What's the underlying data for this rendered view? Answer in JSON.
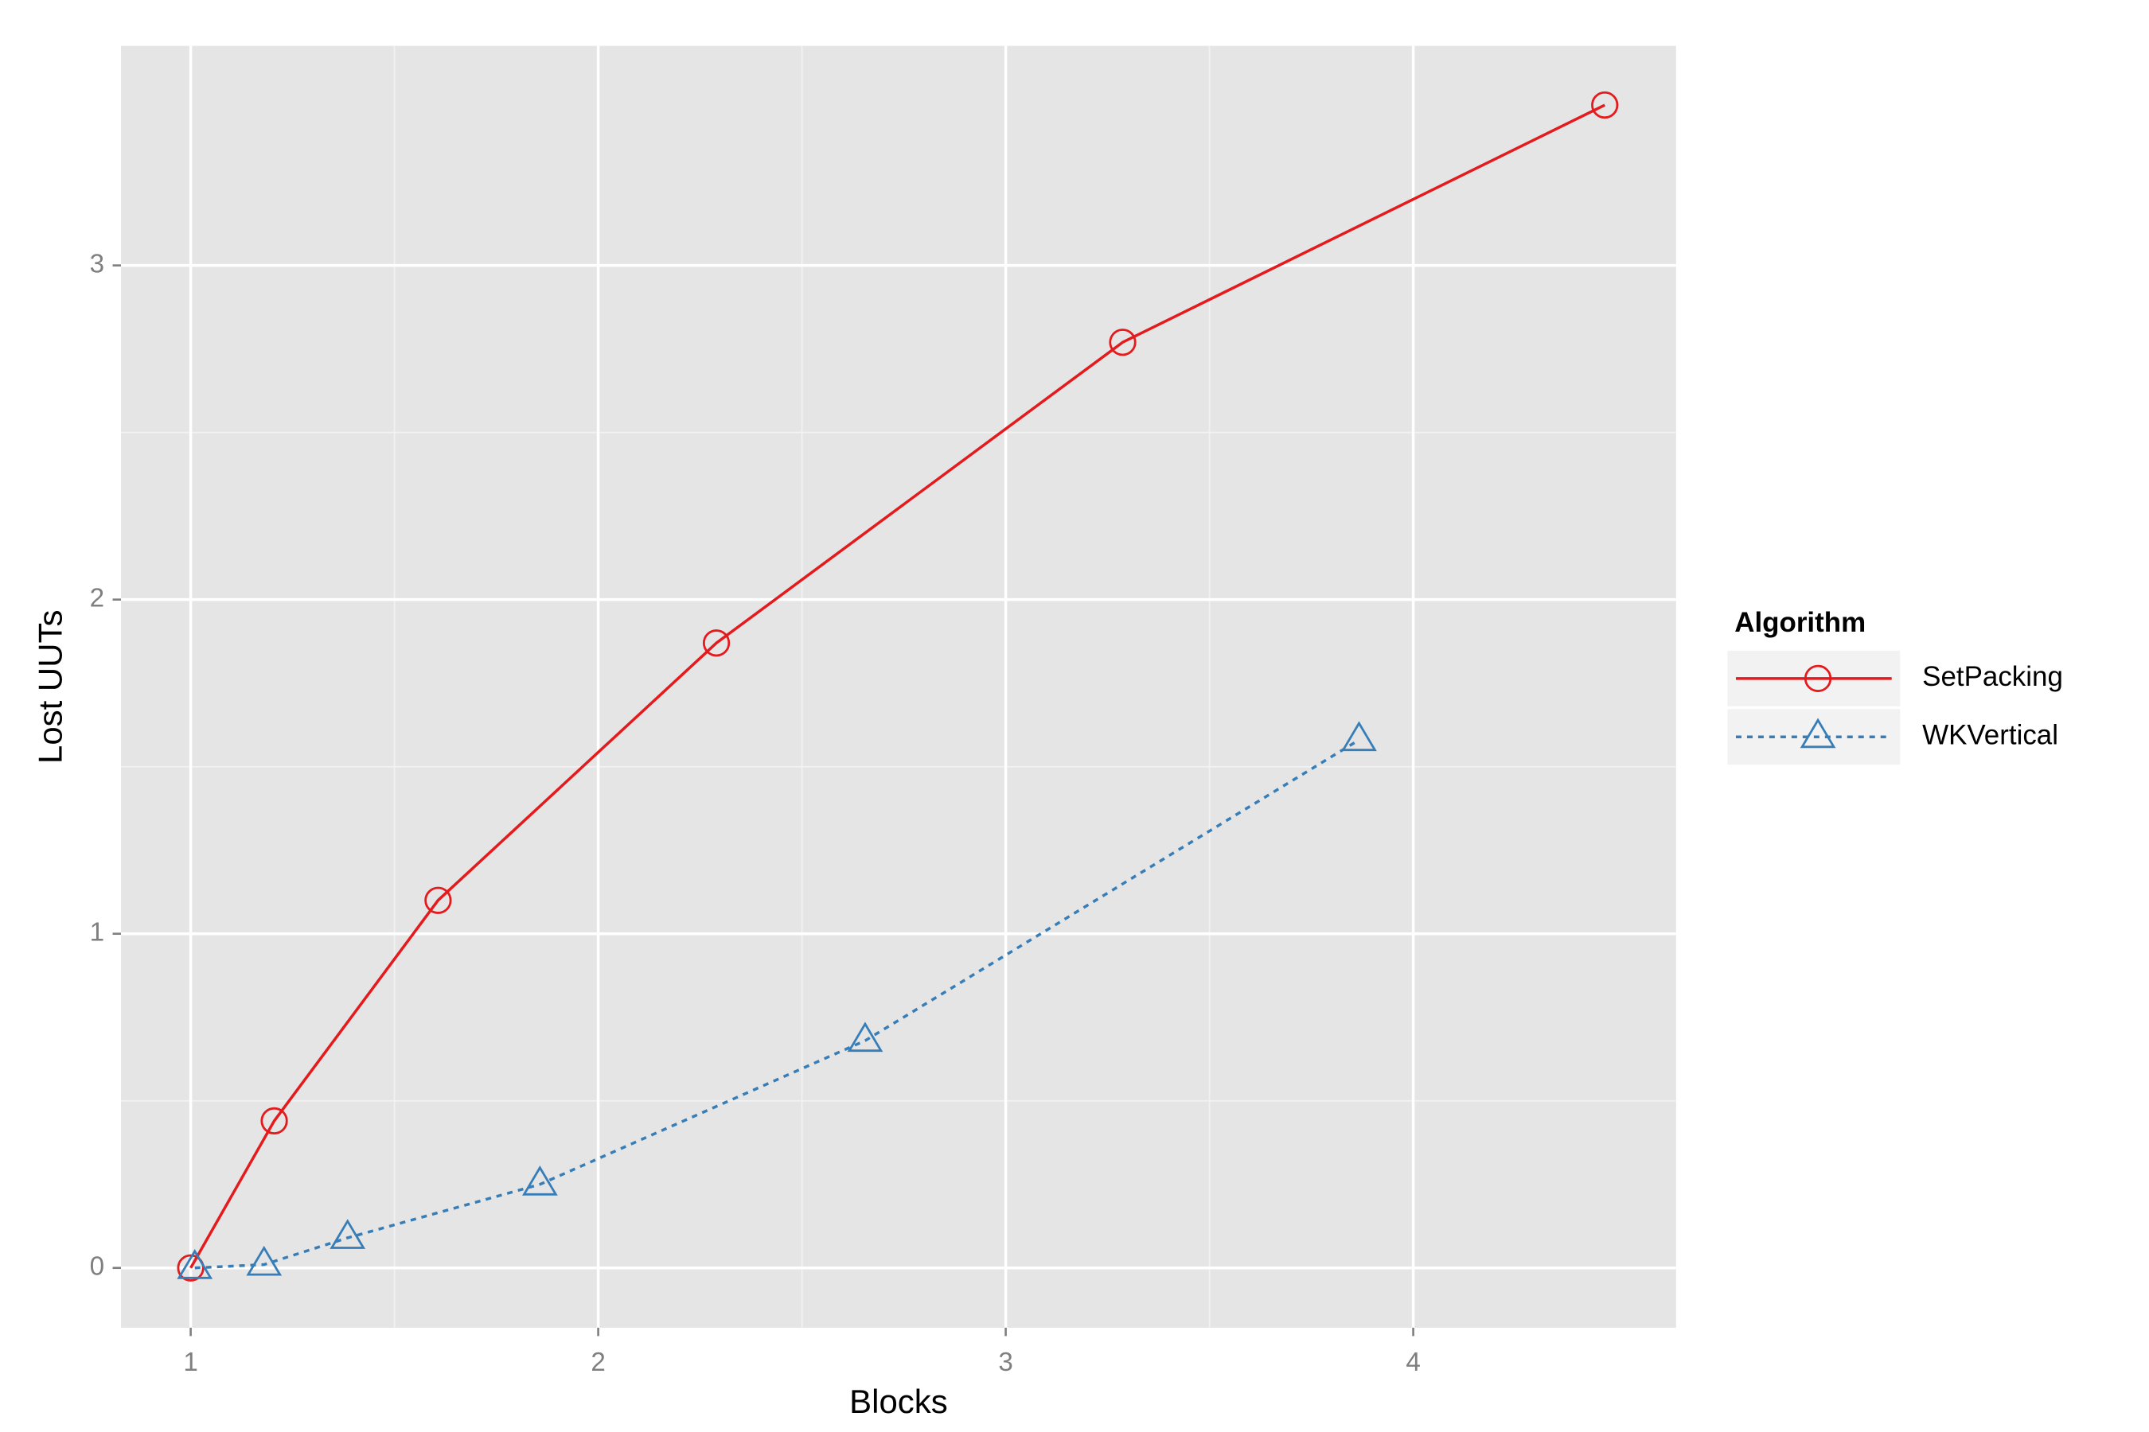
{
  "chart_data": {
    "type": "line",
    "xlabel": "Blocks",
    "ylabel": "Lost UUTs",
    "xlim": [
      0.829,
      4.645
    ],
    "ylim": [
      -0.179,
      3.657
    ],
    "xticks": [
      1,
      2,
      3,
      4
    ],
    "yticks": [
      0,
      1,
      2,
      3
    ],
    "grid": true,
    "legend_title": "Algorithm",
    "legend_position": "right",
    "series": [
      {
        "name": "SetPacking",
        "color": "#e41a1c",
        "marker": "circle",
        "linestyle": "solid",
        "x": [
          1.0,
          1.205,
          1.607,
          2.29,
          3.287,
          4.47
        ],
        "values": [
          0.0,
          0.44,
          1.1,
          1.87,
          2.77,
          3.48
        ]
      },
      {
        "name": "WKVertical",
        "color": "#377eb8",
        "marker": "triangle",
        "linestyle": "dashed",
        "x": [
          1.01,
          1.18,
          1.385,
          1.857,
          2.655,
          3.867
        ],
        "values": [
          0.0,
          0.01,
          0.09,
          0.25,
          0.68,
          1.58
        ]
      }
    ]
  }
}
